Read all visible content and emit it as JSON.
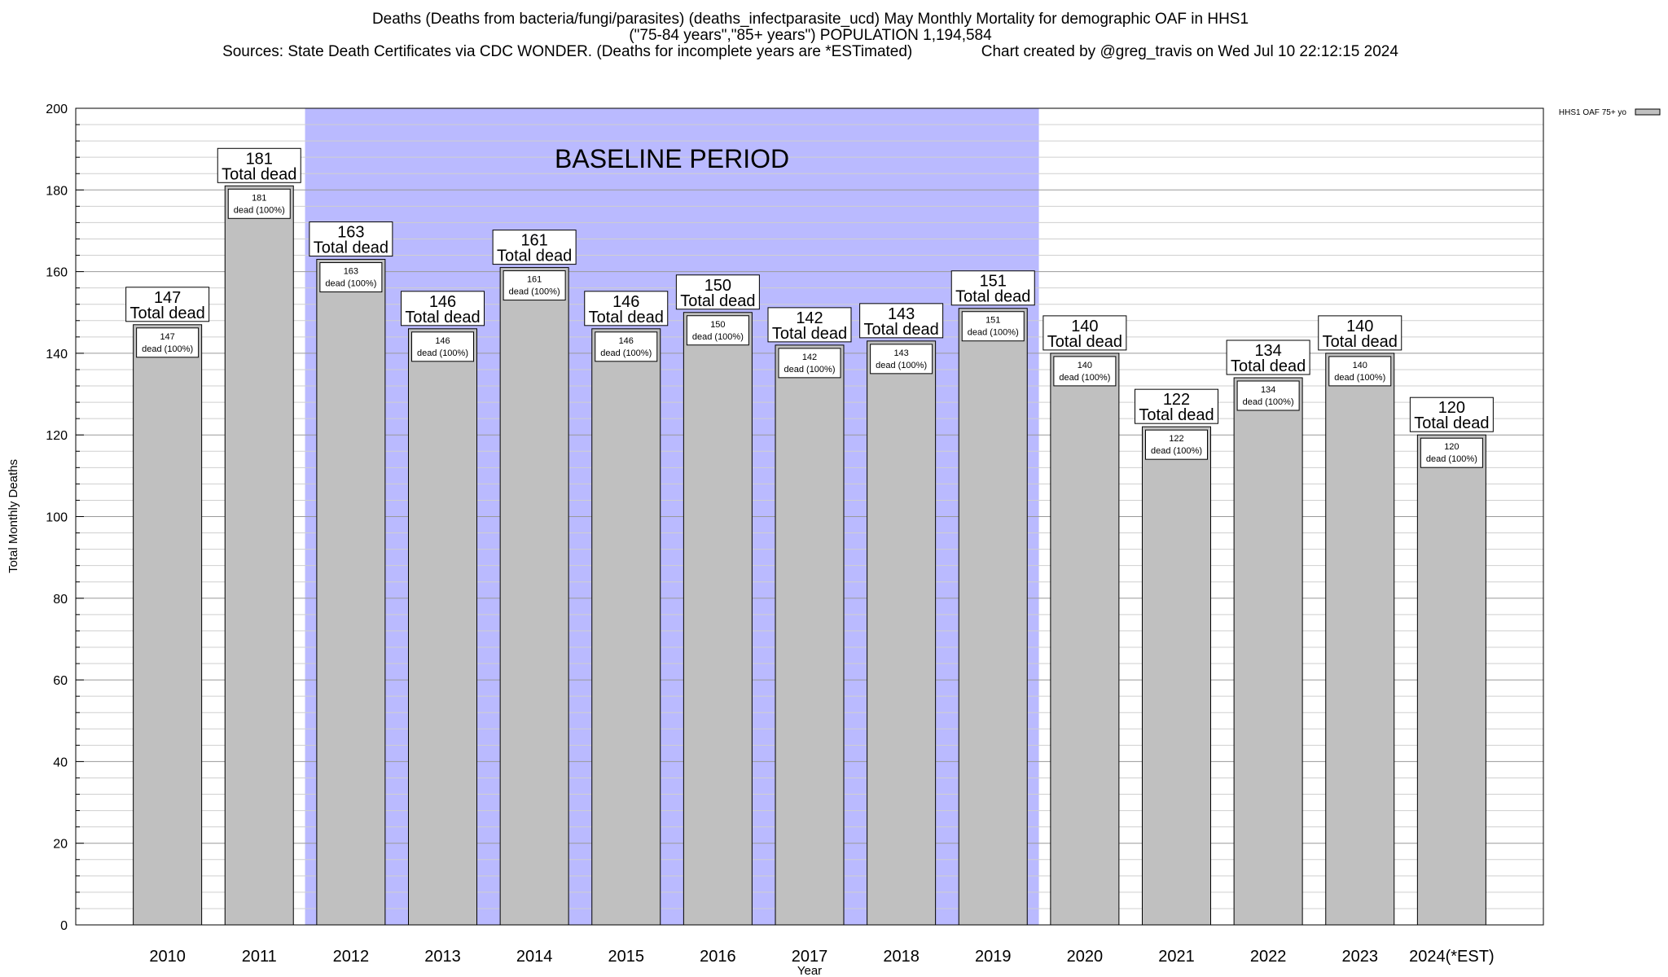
{
  "header": {
    "line1": "Deaths (Deaths from bacteria/fungi/parasites) (deaths_infectparasite_ucd) May Monthly Mortality for demographic OAF in HHS1",
    "line2": "(\"75-84 years\",\"85+ years\") POPULATION 1,194,584",
    "line3": "Sources: State Death Certificates via CDC WONDER. (Deaths for incomplete years are *ESTimated)                Chart created by @greg_travis on Wed Jul 10 22:12:15 2024"
  },
  "chart_data": {
    "type": "bar",
    "xlabel": "Year",
    "ylabel": "Total Monthly Deaths",
    "ylim": [
      0,
      200
    ],
    "y_major_ticks": [
      0,
      20,
      40,
      60,
      80,
      100,
      120,
      140,
      160,
      180,
      200
    ],
    "y_minor_step": 4,
    "grid": true,
    "categories": [
      "2010",
      "2011",
      "2012",
      "2013",
      "2014",
      "2015",
      "2016",
      "2017",
      "2018",
      "2019",
      "2020",
      "2021",
      "2022",
      "2023",
      "2024(*EST)"
    ],
    "series": [
      {
        "name": "HHS1 OAF 75+ yo",
        "values": [
          147,
          181,
          163,
          146,
          161,
          146,
          150,
          142,
          143,
          151,
          140,
          122,
          134,
          140,
          120
        ],
        "color": "#c0c0c0"
      }
    ],
    "total_label_text": "Total dead",
    "inner_label_text": "dead (100%)",
    "baseline": {
      "label": "BASELINE PERIOD",
      "from": "2012",
      "to": "2019",
      "color": "#babaff"
    },
    "legend_position": "top-right"
  }
}
